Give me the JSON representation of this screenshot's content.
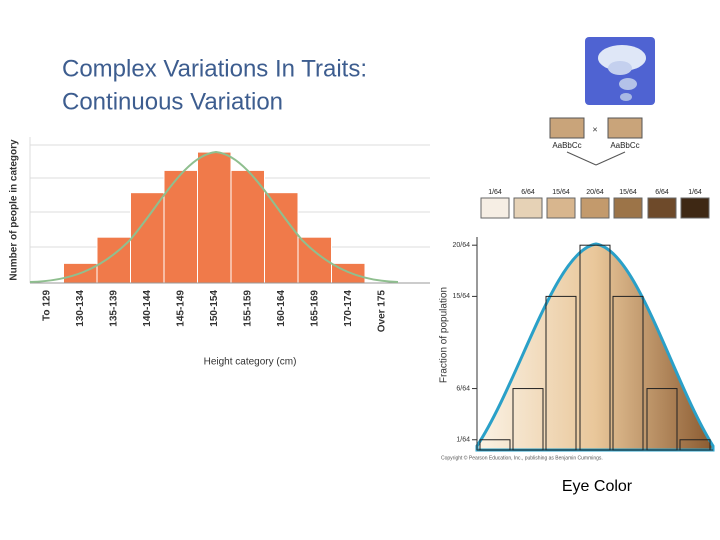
{
  "slide": {
    "title": [
      "Complex Variations In Traits:",
      "Continuous Variation"
    ],
    "caption": "Eye Color"
  },
  "chart_data": [
    {
      "type": "bar",
      "ylabel": "Number of people in category",
      "xlabel": "Height category (cm)",
      "categories": [
        "To 129",
        "130-134",
        "135-139",
        "140-144",
        "145-149",
        "150-154",
        "155-159",
        "160-164",
        "165-169",
        "170-174",
        "Over 175"
      ],
      "values": [
        0,
        1.5,
        3.5,
        6.9,
        8.6,
        10,
        8.6,
        6.9,
        3.5,
        1.5,
        0
      ],
      "color": "#f07a4a",
      "ylim": [
        0,
        11
      ]
    },
    {
      "type": "bar",
      "ylabel": "Fraction of population",
      "parents": [
        "AaBbCc",
        "AaBbCc"
      ],
      "cross": "×",
      "categories": [
        "1/64",
        "6/64",
        "15/64",
        "20/64",
        "15/64",
        "6/64",
        "1/64"
      ],
      "values": [
        0.015625,
        0.09375,
        0.234375,
        0.3125,
        0.234375,
        0.09375,
        0.015625
      ],
      "colors": [
        "#f6eee4",
        "#e6d2b6",
        "#d8b68e",
        "#c39a6c",
        "#9c7448",
        "#6e4a2a",
        "#3e2814"
      ],
      "ylim": [
        0,
        0.325
      ],
      "yticks": [
        {
          "value": 0.015625,
          "label": "1/64"
        },
        {
          "value": 0.09375,
          "label": "6/64"
        },
        {
          "value": 0.234375,
          "label": "15/64"
        },
        {
          "value": 0.3125,
          "label": "20/64"
        }
      ],
      "credit": "Copyright © Pearson Education, Inc., publishing as Benjamin Cummings."
    }
  ]
}
